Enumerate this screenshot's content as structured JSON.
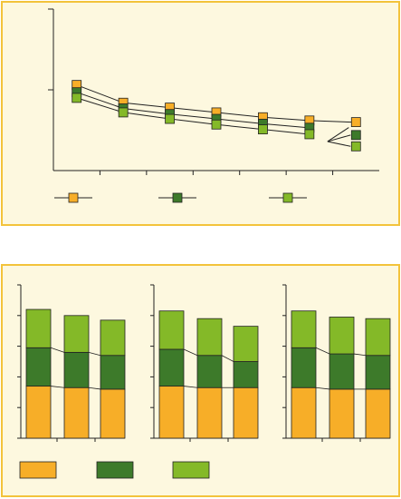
{
  "colors": {
    "series_a": "#f7ae28",
    "series_b": "#3d7a2a",
    "series_c": "#84b928",
    "axis": "#222222",
    "panel_fill": "#fdf8df",
    "panel_border": "#f3c33b"
  },
  "chart_data": [
    {
      "type": "line",
      "title": "",
      "xlabel": "",
      "ylabel": "",
      "x": [
        1,
        2,
        3,
        4,
        5,
        6,
        7
      ],
      "xlim": [
        0.5,
        7.5
      ],
      "ylim": [
        0,
        2
      ],
      "grid": false,
      "legend": "bottom",
      "series": [
        {
          "marker_color": "series_a",
          "values": [
            1.06,
            0.84,
            0.78,
            0.72,
            0.66,
            0.62,
            0.6
          ]
        },
        {
          "marker_color": "series_b",
          "values": [
            0.97,
            0.77,
            0.7,
            0.64,
            0.58,
            0.53,
            0.44
          ]
        },
        {
          "marker_color": "series_c",
          "values": [
            0.9,
            0.72,
            0.64,
            0.57,
            0.51,
            0.45,
            0.3
          ]
        }
      ]
    },
    {
      "type": "bar",
      "stacked": true,
      "title": "",
      "categories": [
        "",
        "",
        ""
      ],
      "ylim": [
        0,
        5
      ],
      "grid": false,
      "legend": "bottom",
      "series": [
        {
          "color": "series_a",
          "values": [
            1.7,
            1.65,
            1.6
          ]
        },
        {
          "color": "series_b",
          "values": [
            1.25,
            1.15,
            1.1
          ]
        },
        {
          "color": "series_c",
          "values": [
            1.25,
            1.2,
            1.15
          ]
        }
      ]
    },
    {
      "type": "bar",
      "stacked": true,
      "title": "",
      "categories": [
        "",
        "",
        ""
      ],
      "ylim": [
        0,
        5
      ],
      "grid": false,
      "legend": "bottom",
      "series": [
        {
          "color": "series_a",
          "values": [
            1.7,
            1.65,
            1.65
          ]
        },
        {
          "color": "series_b",
          "values": [
            1.2,
            1.05,
            0.85
          ]
        },
        {
          "color": "series_c",
          "values": [
            1.25,
            1.2,
            1.15
          ]
        }
      ]
    },
    {
      "type": "bar",
      "stacked": true,
      "title": "",
      "categories": [
        "",
        "",
        ""
      ],
      "ylim": [
        0,
        5
      ],
      "grid": false,
      "legend": "bottom",
      "series": [
        {
          "color": "series_a",
          "values": [
            1.65,
            1.6,
            1.6
          ]
        },
        {
          "color": "series_b",
          "values": [
            1.3,
            1.15,
            1.1
          ]
        },
        {
          "color": "series_c",
          "values": [
            1.2,
            1.2,
            1.2
          ]
        }
      ]
    }
  ]
}
